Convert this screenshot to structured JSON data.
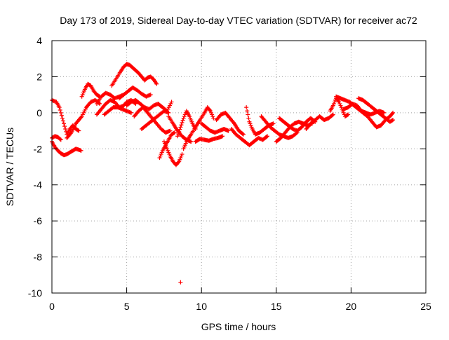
{
  "chart_data": {
    "type": "scatter",
    "title": "Day 173 of 2019, Sidereal Day-to-day VTEC variation (SDTVAR) for receiver ac72",
    "xlabel": "GPS time / hours",
    "ylabel": "SDTVAR / TECUs",
    "xlim": [
      0,
      25
    ],
    "ylim": [
      -10,
      4
    ],
    "xticks": [
      0,
      5,
      10,
      15,
      20,
      25
    ],
    "yticks": [
      -10,
      -8,
      -6,
      -4,
      -2,
      0,
      2,
      4
    ],
    "xtick_labels": [
      "0",
      "5",
      "10",
      "15",
      "20",
      "25"
    ],
    "ytick_labels": [
      "-10",
      "-8",
      "-6",
      "-4",
      "-2",
      "0",
      "2",
      "4"
    ],
    "grid": true,
    "marker": "+",
    "series": [
      {
        "name": "SDTVAR",
        "color": "#ff0000",
        "tracks": [
          [
            [
              0.0,
              0.7
            ],
            [
              0.3,
              0.6
            ],
            [
              0.5,
              0.3
            ],
            [
              0.7,
              -0.3
            ],
            [
              0.9,
              -0.9
            ],
            [
              1.0,
              -1.2
            ],
            [
              1.2,
              -0.9
            ],
            [
              1.4,
              -0.7
            ],
            [
              1.6,
              -0.9
            ],
            [
              1.8,
              -1.0
            ]
          ],
          [
            [
              0.0,
              -1.6
            ],
            [
              0.2,
              -1.9
            ],
            [
              0.4,
              -2.1
            ],
            [
              0.6,
              -2.25
            ],
            [
              0.8,
              -2.35
            ],
            [
              1.0,
              -2.3
            ],
            [
              1.2,
              -2.2
            ],
            [
              1.4,
              -2.1
            ],
            [
              1.6,
              -2.0
            ],
            [
              1.8,
              -2.05
            ],
            [
              1.95,
              -2.1
            ]
          ],
          [
            [
              0.0,
              -1.4
            ],
            [
              0.2,
              -1.3
            ],
            [
              0.4,
              -1.35
            ],
            [
              0.6,
              -1.5
            ]
          ],
          [
            [
              1.0,
              -1.4
            ],
            [
              1.3,
              -1.1
            ],
            [
              1.6,
              -0.6
            ],
            [
              2.0,
              -0.2
            ],
            [
              2.3,
              0.3
            ],
            [
              2.6,
              0.6
            ],
            [
              2.9,
              0.7
            ],
            [
              3.2,
              0.5
            ]
          ],
          [
            [
              2.0,
              0.9
            ],
            [
              2.2,
              1.3
            ],
            [
              2.4,
              1.6
            ],
            [
              2.6,
              1.5
            ],
            [
              2.8,
              1.2
            ],
            [
              3.0,
              1.0
            ],
            [
              3.2,
              0.9
            ]
          ],
          [
            [
              3.0,
              -0.1
            ],
            [
              3.3,
              0.2
            ],
            [
              3.6,
              0.5
            ],
            [
              3.9,
              0.7
            ],
            [
              4.2,
              0.6
            ],
            [
              4.5,
              0.3
            ],
            [
              4.8,
              0.4
            ],
            [
              5.0,
              0.6
            ],
            [
              5.3,
              0.7
            ],
            [
              5.6,
              0.5
            ]
          ],
          [
            [
              3.0,
              0.5
            ],
            [
              3.3,
              0.9
            ],
            [
              3.6,
              1.1
            ],
            [
              3.9,
              1.0
            ],
            [
              4.2,
              0.8
            ],
            [
              4.5,
              0.9
            ],
            [
              4.8,
              1.0
            ]
          ],
          [
            [
              3.5,
              -0.1
            ],
            [
              3.8,
              0.1
            ],
            [
              4.1,
              0.3
            ],
            [
              4.4,
              0.3
            ],
            [
              4.7,
              0.2
            ],
            [
              5.0,
              0.1
            ],
            [
              5.3,
              0.0
            ]
          ],
          [
            [
              4.0,
              1.5
            ],
            [
              4.3,
              1.9
            ],
            [
              4.6,
              2.3
            ],
            [
              4.8,
              2.55
            ],
            [
              5.0,
              2.7
            ],
            [
              5.2,
              2.65
            ],
            [
              5.4,
              2.5
            ],
            [
              5.6,
              2.35
            ],
            [
              5.8,
              2.2
            ],
            [
              6.0,
              2.0
            ],
            [
              6.2,
              1.8
            ],
            [
              6.4,
              1.95
            ],
            [
              6.6,
              2.0
            ],
            [
              6.8,
              1.85
            ],
            [
              7.0,
              1.6
            ]
          ],
          [
            [
              4.5,
              0.8
            ],
            [
              4.8,
              1.0
            ],
            [
              5.1,
              1.2
            ],
            [
              5.4,
              1.4
            ],
            [
              5.7,
              1.25
            ],
            [
              6.0,
              1.05
            ],
            [
              6.3,
              0.9
            ],
            [
              6.6,
              1.0
            ]
          ],
          [
            [
              5.0,
              0.4
            ],
            [
              5.3,
              0.6
            ],
            [
              5.6,
              0.7
            ],
            [
              5.9,
              0.5
            ],
            [
              6.2,
              0.3
            ],
            [
              6.5,
              0.2
            ],
            [
              6.8,
              0.4
            ],
            [
              7.1,
              0.5
            ],
            [
              7.4,
              0.3
            ],
            [
              7.7,
              0.1
            ],
            [
              8.0,
              0.6
            ]
          ],
          [
            [
              5.5,
              -0.2
            ],
            [
              5.8,
              0.1
            ],
            [
              6.1,
              0.3
            ],
            [
              6.4,
              0.0
            ],
            [
              6.7,
              -0.3
            ],
            [
              7.0,
              -0.6
            ],
            [
              7.3,
              -0.9
            ],
            [
              7.6,
              -1.1
            ],
            [
              7.9,
              -1.0
            ]
          ],
          [
            [
              6.0,
              -0.9
            ],
            [
              6.3,
              -0.7
            ],
            [
              6.6,
              -0.5
            ],
            [
              6.9,
              -0.3
            ],
            [
              7.2,
              -0.1
            ],
            [
              7.5,
              0.1
            ],
            [
              7.8,
              0.0
            ]
          ],
          [
            [
              7.2,
              -2.5
            ],
            [
              7.4,
              -2.1
            ],
            [
              7.6,
              -1.8
            ],
            [
              7.8,
              -1.5
            ],
            [
              8.0,
              -1.2
            ],
            [
              8.2,
              -1.1
            ]
          ],
          [
            [
              7.5,
              -1.6
            ],
            [
              7.7,
              -2.0
            ],
            [
              7.9,
              -2.4
            ],
            [
              8.1,
              -2.7
            ],
            [
              8.3,
              -2.9
            ],
            [
              8.5,
              -2.7
            ],
            [
              8.7,
              -2.3
            ]
          ],
          [
            [
              7.8,
              -0.2
            ],
            [
              8.1,
              -0.6
            ],
            [
              8.4,
              -1.0
            ],
            [
              8.7,
              -1.3
            ],
            [
              9.0,
              -1.5
            ],
            [
              9.3,
              -1.6
            ]
          ],
          [
            [
              8.4,
              -1.3
            ],
            [
              8.6,
              -0.8
            ],
            [
              8.8,
              -0.3
            ],
            [
              9.0,
              0.1
            ],
            [
              9.2,
              -0.2
            ],
            [
              9.4,
              -0.6
            ],
            [
              9.6,
              -0.9
            ]
          ],
          [
            [
              8.8,
              -2.0
            ],
            [
              9.0,
              -1.6
            ],
            [
              9.3,
              -1.2
            ],
            [
              9.6,
              -0.8
            ],
            [
              9.9,
              -0.4
            ],
            [
              10.2,
              0.0
            ],
            [
              10.4,
              0.3
            ],
            [
              10.6,
              0.1
            ],
            [
              10.8,
              -0.3
            ]
          ],
          [
            [
              8.6,
              -9.4
            ]
          ],
          [
            [
              9.6,
              -1.6
            ],
            [
              9.9,
              -1.45
            ],
            [
              10.2,
              -1.5
            ],
            [
              10.5,
              -1.55
            ],
            [
              10.8,
              -1.45
            ],
            [
              11.1,
              -1.4
            ],
            [
              11.4,
              -1.3
            ]
          ],
          [
            [
              10.0,
              -0.6
            ],
            [
              10.3,
              -0.8
            ],
            [
              10.6,
              -1.0
            ],
            [
              10.9,
              -1.1
            ],
            [
              11.2,
              -1.0
            ],
            [
              11.5,
              -0.9
            ],
            [
              11.8,
              -1.0
            ]
          ],
          [
            [
              11.0,
              -0.4
            ],
            [
              11.3,
              -0.1
            ],
            [
              11.6,
              0.0
            ],
            [
              11.9,
              -0.3
            ],
            [
              12.2,
              -0.6
            ],
            [
              12.5,
              -1.0
            ],
            [
              12.8,
              -1.2
            ]
          ],
          [
            [
              12.0,
              -0.9
            ],
            [
              12.3,
              -1.2
            ],
            [
              12.6,
              -1.4
            ],
            [
              12.9,
              -1.6
            ],
            [
              13.2,
              -1.8
            ],
            [
              13.5,
              -1.6
            ],
            [
              13.8,
              -1.4
            ],
            [
              14.1,
              -1.5
            ],
            [
              14.4,
              -1.3
            ]
          ],
          [
            [
              13.0,
              0.3
            ],
            [
              13.1,
              -0.1
            ],
            [
              13.2,
              -0.5
            ],
            [
              13.4,
              -0.9
            ],
            [
              13.6,
              -1.2
            ],
            [
              13.9,
              -1.1
            ],
            [
              14.2,
              -0.9
            ],
            [
              14.5,
              -0.7
            ],
            [
              14.8,
              -0.6
            ]
          ],
          [
            [
              14.0,
              -0.2
            ],
            [
              14.3,
              -0.5
            ],
            [
              14.6,
              -0.8
            ],
            [
              14.9,
              -1.0
            ],
            [
              15.2,
              -1.2
            ],
            [
              15.5,
              -1.3
            ],
            [
              15.8,
              -1.4
            ],
            [
              16.1,
              -1.3
            ],
            [
              16.4,
              -1.1
            ]
          ],
          [
            [
              15.0,
              -1.6
            ],
            [
              15.3,
              -1.4
            ],
            [
              15.6,
              -1.1
            ],
            [
              15.9,
              -0.8
            ],
            [
              16.2,
              -0.6
            ],
            [
              16.5,
              -0.5
            ],
            [
              16.8,
              -0.6
            ],
            [
              17.1,
              -0.7
            ],
            [
              17.4,
              -0.6
            ]
          ],
          [
            [
              15.2,
              -0.3
            ],
            [
              15.5,
              -0.5
            ],
            [
              15.8,
              -0.7
            ],
            [
              16.1,
              -0.9
            ],
            [
              16.4,
              -1.0
            ],
            [
              16.7,
              -0.8
            ],
            [
              17.0,
              -0.5
            ],
            [
              17.3,
              -0.3
            ],
            [
              17.6,
              -0.5
            ]
          ],
          [
            [
              17.0,
              -0.9
            ],
            [
              17.3,
              -0.6
            ],
            [
              17.6,
              -0.4
            ],
            [
              17.9,
              -0.2
            ],
            [
              18.2,
              -0.4
            ],
            [
              18.5,
              -0.3
            ],
            [
              18.8,
              -0.1
            ]
          ],
          [
            [
              18.6,
              0.1
            ],
            [
              18.8,
              0.4
            ],
            [
              19.0,
              0.8
            ],
            [
              19.2,
              0.6
            ],
            [
              19.4,
              0.2
            ],
            [
              19.6,
              -0.2
            ],
            [
              19.8,
              -0.1
            ]
          ],
          [
            [
              19.0,
              0.9
            ],
            [
              19.3,
              0.8
            ],
            [
              19.6,
              0.7
            ],
            [
              19.9,
              0.6
            ],
            [
              20.2,
              0.4
            ],
            [
              20.5,
              0.2
            ],
            [
              20.8,
              0.0
            ],
            [
              21.1,
              -0.2
            ],
            [
              21.4,
              -0.5
            ],
            [
              21.7,
              -0.8
            ],
            [
              22.0,
              -0.7
            ],
            [
              22.3,
              -0.4
            ],
            [
              22.6,
              -0.2
            ],
            [
              22.8,
              0.0
            ]
          ],
          [
            [
              19.5,
              0.2
            ],
            [
              19.8,
              0.3
            ],
            [
              20.1,
              0.5
            ],
            [
              20.4,
              0.4
            ],
            [
              20.7,
              0.1
            ],
            [
              21.0,
              0.0
            ],
            [
              21.3,
              -0.1
            ],
            [
              21.6,
              0.0
            ],
            [
              21.9,
              0.1
            ],
            [
              22.2,
              0.0
            ]
          ],
          [
            [
              20.5,
              0.8
            ],
            [
              20.8,
              0.7
            ],
            [
              21.1,
              0.5
            ],
            [
              21.4,
              0.3
            ],
            [
              21.7,
              0.1
            ],
            [
              22.0,
              -0.1
            ],
            [
              22.3,
              -0.3
            ],
            [
              22.6,
              -0.5
            ],
            [
              22.8,
              -0.4
            ]
          ]
        ]
      }
    ]
  }
}
